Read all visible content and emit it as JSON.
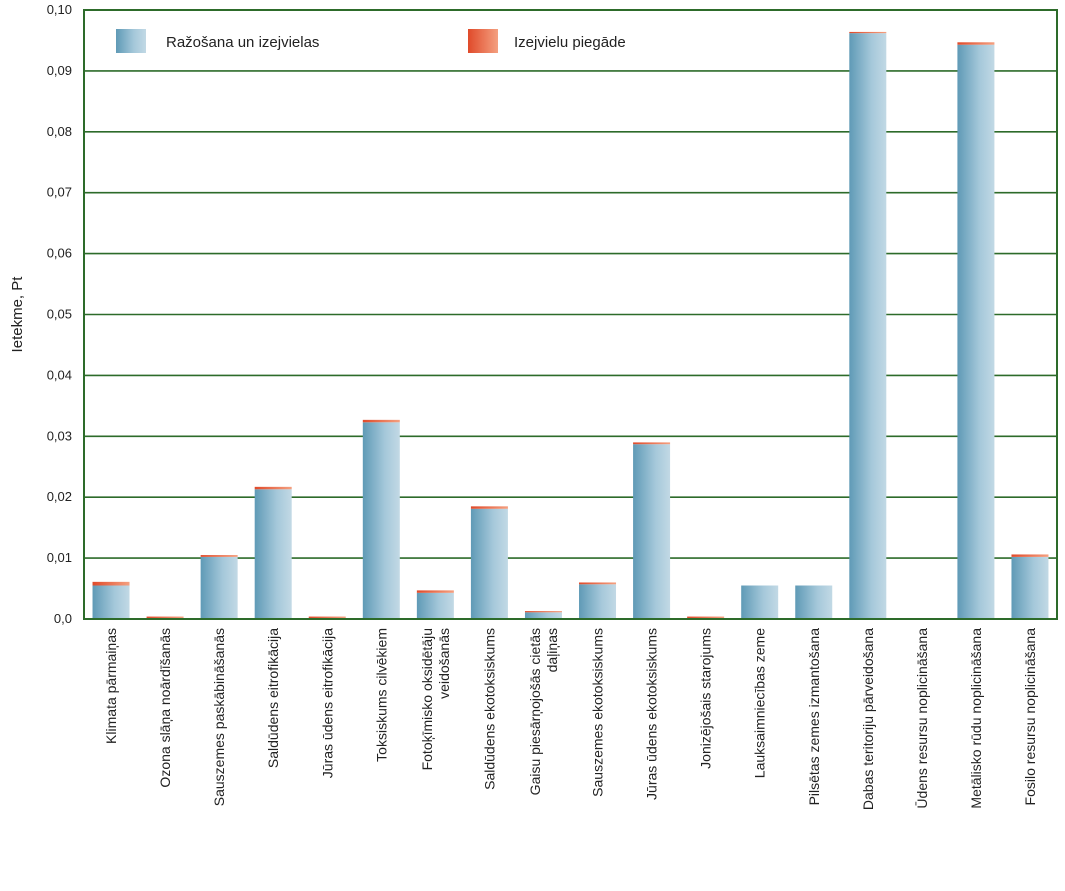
{
  "chart_data": {
    "type": "bar",
    "stacked": true,
    "ylabel": "Ietekme, Pt",
    "ylim": [
      0,
      0.1
    ],
    "yticks": [
      "0,0",
      "0,01",
      "0,02",
      "0,03",
      "0,04",
      "0,05",
      "0,06",
      "0,07",
      "0,08",
      "0,09",
      "0,10"
    ],
    "grid": true,
    "legend_position": "top-left",
    "categories": [
      [
        "Klimata pārmaiņas"
      ],
      [
        "Ozona slāņa noārdīšanās"
      ],
      [
        "Sauszemes paskābināšanās"
      ],
      [
        "Saldūdens eitrofikācija"
      ],
      [
        "Jūras ūdens eitrofikācija"
      ],
      [
        "Toksiskums cilvēkiem"
      ],
      [
        "Fotoķīmisko oksidētāju",
        "veidošanās"
      ],
      [
        "Saldūdens ekotoksiskums"
      ],
      [
        "Gaisu piesārņojošās cietās",
        "daļiņas"
      ],
      [
        "Sauszemes ekotoksiskums"
      ],
      [
        "Jūras ūdens ekotoksiskums"
      ],
      [
        "Jonizējošais starojums"
      ],
      [
        "Lauksaimniecības zeme"
      ],
      [
        "Pilsētas zemes izmantošana"
      ],
      [
        "Dabas teritoriju pārveidošana"
      ],
      [
        "Ūdens resursu noplicināšana"
      ],
      [
        "Metālisko rūdu noplicināšana"
      ],
      [
        "Fosilo resursu noplicināšana"
      ]
    ],
    "series": [
      {
        "name": "Ražošana un izejvielas",
        "color": "#7fb0c8",
        "values": [
          0.0055,
          0.0001,
          0.0102,
          0.0213,
          0.0001,
          0.0323,
          0.0043,
          0.0181,
          0.0011,
          0.0057,
          0.0287,
          0.0001,
          0.0055,
          0.0055,
          0.0962,
          0.0,
          0.0943,
          0.0102
        ]
      },
      {
        "name": "Izejvielu piegāde",
        "color": "#e8643c",
        "values": [
          0.0006,
          0.0003,
          0.0003,
          0.0004,
          0.0003,
          0.0004,
          0.0004,
          0.0004,
          0.0002,
          0.0003,
          0.0003,
          0.0003,
          0.0,
          0.0,
          0.0002,
          0.0,
          0.0004,
          0.0004
        ]
      }
    ]
  }
}
